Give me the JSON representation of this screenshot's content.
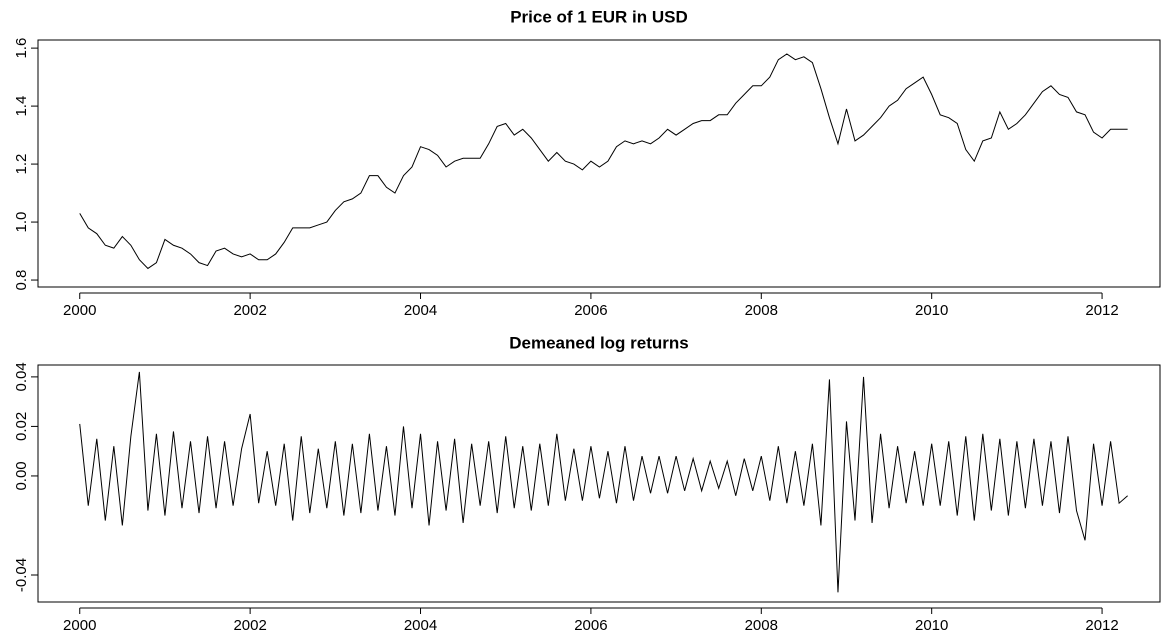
{
  "chart_data": [
    {
      "type": "line",
      "title": "Price of 1 EUR in USD",
      "color": "#000000",
      "xlim": [
        1999.51,
        2012.68
      ],
      "xticks": [
        2000,
        2002,
        2004,
        2006,
        2008,
        2010,
        2012
      ],
      "ylim": [
        0.776,
        1.628
      ],
      "yticks": [
        0.8,
        {
          "value": 1.0,
          "label": "1.0"
        },
        1.2,
        1.4,
        1.6
      ],
      "x": [
        2000.0,
        2000.1,
        2000.2,
        2000.3,
        2000.4,
        2000.5,
        2000.6,
        2000.7,
        2000.8,
        2000.9,
        2001.0,
        2001.1,
        2001.2,
        2001.3,
        2001.4,
        2001.5,
        2001.6,
        2001.7,
        2001.8,
        2001.9,
        2002.0,
        2002.1,
        2002.2,
        2002.3,
        2002.4,
        2002.5,
        2002.6,
        2002.7,
        2002.8,
        2002.9,
        2003.0,
        2003.1,
        2003.2,
        2003.3,
        2003.4,
        2003.5,
        2003.6,
        2003.7,
        2003.8,
        2003.9,
        2004.0,
        2004.1,
        2004.2,
        2004.3,
        2004.4,
        2004.5,
        2004.6,
        2004.7,
        2004.8,
        2004.9,
        2005.0,
        2005.1,
        2005.2,
        2005.3,
        2005.4,
        2005.5,
        2005.6,
        2005.7,
        2005.8,
        2005.9,
        2006.0,
        2006.1,
        2006.2,
        2006.3,
        2006.4,
        2006.5,
        2006.6,
        2006.7,
        2006.8,
        2006.9,
        2007.0,
        2007.1,
        2007.2,
        2007.3,
        2007.4,
        2007.5,
        2007.6,
        2007.7,
        2007.8,
        2007.9,
        2008.0,
        2008.1,
        2008.2,
        2008.3,
        2008.4,
        2008.5,
        2008.6,
        2008.7,
        2008.8,
        2008.9,
        2009.0,
        2009.1,
        2009.2,
        2009.3,
        2009.4,
        2009.5,
        2009.6,
        2009.7,
        2009.8,
        2009.9,
        2010.0,
        2010.1,
        2010.2,
        2010.3,
        2010.4,
        2010.5,
        2010.6,
        2010.7,
        2010.8,
        2010.9,
        2011.0,
        2011.1,
        2011.2,
        2011.3,
        2011.4,
        2011.5,
        2011.6,
        2011.7,
        2011.8,
        2011.9,
        2012.0,
        2012.1,
        2012.2,
        2012.3
      ],
      "values": [
        1.03,
        0.98,
        0.96,
        0.92,
        0.91,
        0.95,
        0.92,
        0.87,
        0.84,
        0.86,
        0.94,
        0.92,
        0.91,
        0.89,
        0.86,
        0.85,
        0.9,
        0.91,
        0.89,
        0.88,
        0.89,
        0.87,
        0.87,
        0.89,
        0.93,
        0.98,
        0.98,
        0.98,
        0.99,
        1.0,
        1.04,
        1.07,
        1.08,
        1.1,
        1.16,
        1.16,
        1.12,
        1.1,
        1.16,
        1.19,
        1.26,
        1.25,
        1.23,
        1.19,
        1.21,
        1.22,
        1.22,
        1.22,
        1.27,
        1.33,
        1.34,
        1.3,
        1.32,
        1.29,
        1.25,
        1.21,
        1.24,
        1.21,
        1.2,
        1.18,
        1.21,
        1.19,
        1.21,
        1.26,
        1.28,
        1.27,
        1.28,
        1.27,
        1.29,
        1.32,
        1.3,
        1.32,
        1.34,
        1.35,
        1.35,
        1.37,
        1.37,
        1.41,
        1.44,
        1.47,
        1.47,
        1.5,
        1.56,
        1.58,
        1.56,
        1.57,
        1.55,
        1.46,
        1.36,
        1.27,
        1.39,
        1.28,
        1.3,
        1.33,
        1.36,
        1.4,
        1.42,
        1.46,
        1.48,
        1.5,
        1.44,
        1.37,
        1.36,
        1.34,
        1.25,
        1.21,
        1.28,
        1.29,
        1.38,
        1.32,
        1.34,
        1.37,
        1.41,
        1.45,
        1.47,
        1.44,
        1.43,
        1.38,
        1.37,
        1.31,
        1.29,
        1.32,
        1.32,
        1.32
      ]
    },
    {
      "type": "line",
      "title": "Demeaned log returns",
      "color": "#000000",
      "xlim": [
        1999.51,
        2012.68
      ],
      "xticks": [
        2000,
        2002,
        2004,
        2006,
        2008,
        2010,
        2012
      ],
      "ylim": [
        -0.0509,
        0.0448
      ],
      "yticks": [
        -0.04,
        {
          "value": 0,
          "label": "0.00"
        },
        0.02,
        0.04
      ],
      "x": [
        2000.0,
        2000.1,
        2000.2,
        2000.3,
        2000.4,
        2000.5,
        2000.6,
        2000.7,
        2000.8,
        2000.9,
        2001.0,
        2001.1,
        2001.2,
        2001.3,
        2001.4,
        2001.5,
        2001.6,
        2001.7,
        2001.8,
        2001.9,
        2002.0,
        2002.1,
        2002.2,
        2002.3,
        2002.4,
        2002.5,
        2002.6,
        2002.7,
        2002.8,
        2002.9,
        2003.0,
        2003.1,
        2003.2,
        2003.3,
        2003.4,
        2003.5,
        2003.6,
        2003.7,
        2003.8,
        2003.9,
        2004.0,
        2004.1,
        2004.2,
        2004.3,
        2004.4,
        2004.5,
        2004.6,
        2004.7,
        2004.8,
        2004.9,
        2005.0,
        2005.1,
        2005.2,
        2005.3,
        2005.4,
        2005.5,
        2005.6,
        2005.7,
        2005.8,
        2005.9,
        2006.0,
        2006.1,
        2006.2,
        2006.3,
        2006.4,
        2006.5,
        2006.6,
        2006.7,
        2006.8,
        2006.9,
        2007.0,
        2007.1,
        2007.2,
        2007.3,
        2007.4,
        2007.5,
        2007.6,
        2007.7,
        2007.8,
        2007.9,
        2008.0,
        2008.1,
        2008.2,
        2008.3,
        2008.4,
        2008.5,
        2008.6,
        2008.7,
        2008.8,
        2008.9,
        2009.0,
        2009.1,
        2009.2,
        2009.3,
        2009.4,
        2009.5,
        2009.6,
        2009.7,
        2009.8,
        2009.9,
        2010.0,
        2010.1,
        2010.2,
        2010.3,
        2010.4,
        2010.5,
        2010.6,
        2010.7,
        2010.8,
        2010.9,
        2011.0,
        2011.1,
        2011.2,
        2011.3,
        2011.4,
        2011.5,
        2011.6,
        2011.7,
        2011.8,
        2011.9,
        2012.0,
        2012.1,
        2012.2,
        2012.3
      ],
      "values": [
        0.021,
        -0.012,
        0.015,
        -0.018,
        0.012,
        -0.02,
        0.016,
        0.042,
        -0.014,
        0.017,
        -0.016,
        0.018,
        -0.013,
        0.014,
        -0.015,
        0.016,
        -0.013,
        0.014,
        -0.012,
        0.011,
        0.025,
        -0.011,
        0.01,
        -0.012,
        0.013,
        -0.018,
        0.016,
        -0.015,
        0.011,
        -0.013,
        0.014,
        -0.016,
        0.013,
        -0.015,
        0.017,
        -0.014,
        0.012,
        -0.016,
        0.02,
        -0.013,
        0.017,
        -0.02,
        0.014,
        -0.014,
        0.015,
        -0.019,
        0.013,
        -0.012,
        0.014,
        -0.015,
        0.016,
        -0.013,
        0.012,
        -0.014,
        0.013,
        -0.012,
        0.017,
        -0.01,
        0.011,
        -0.01,
        0.012,
        -0.009,
        0.01,
        -0.011,
        0.012,
        -0.01,
        0.008,
        -0.007,
        0.008,
        -0.007,
        0.008,
        -0.006,
        0.007,
        -0.006,
        0.006,
        -0.005,
        0.006,
        -0.008,
        0.007,
        -0.006,
        0.008,
        -0.01,
        0.012,
        -0.011,
        0.01,
        -0.012,
        0.013,
        -0.02,
        0.039,
        -0.047,
        0.022,
        -0.018,
        0.04,
        -0.019,
        0.017,
        -0.013,
        0.012,
        -0.011,
        0.01,
        -0.012,
        0.013,
        -0.012,
        0.014,
        -0.016,
        0.016,
        -0.018,
        0.017,
        -0.014,
        0.015,
        -0.016,
        0.014,
        -0.013,
        0.015,
        -0.012,
        0.014,
        -0.015,
        0.016,
        -0.014,
        -0.026,
        0.013,
        -0.012,
        0.014,
        -0.011,
        -0.008
      ]
    }
  ]
}
